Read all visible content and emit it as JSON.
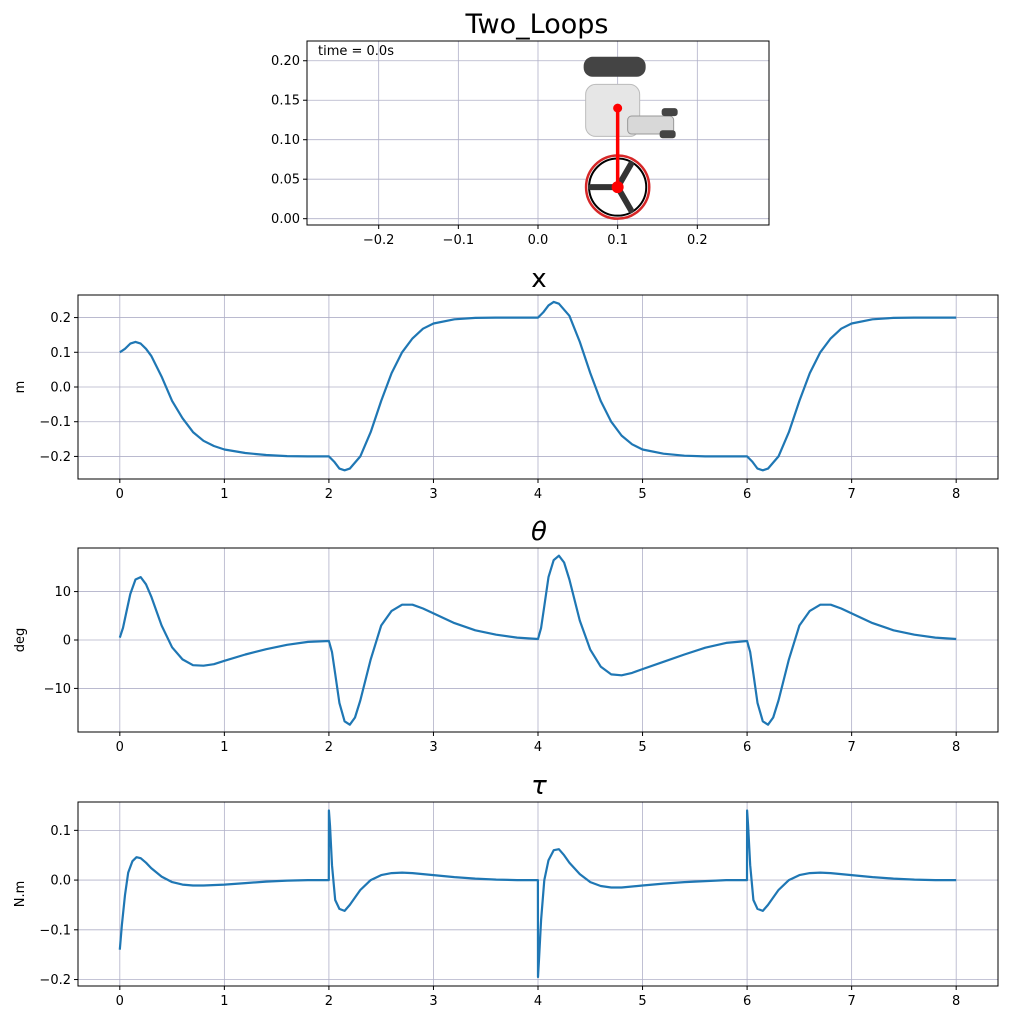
{
  "figure_title": "Two_Loops",
  "animation": {
    "time_label": "time = 0.0s",
    "wheel_x": 0.1,
    "wheel_y": 0.04,
    "wheel_radius": 0.04,
    "pendulum_top_y": 0.14,
    "colors": {
      "pendulum": "#ff0000",
      "wheel_edge": "#d62728",
      "wheel_fill": "#ffffff",
      "wheel": "#000000"
    }
  },
  "chart_data": [
    {
      "type": "scatter",
      "title": "",
      "xlim": [
        -0.29,
        0.29
      ],
      "ylim": [
        -0.008,
        0.225
      ],
      "xticks": [
        -0.2,
        -0.1,
        0.0,
        0.1,
        0.2
      ],
      "yticks": [
        0.0,
        0.05,
        0.1,
        0.15,
        0.2
      ],
      "xtick_labels": [
        "−0.2",
        "−0.1",
        "0.0",
        "0.1",
        "0.2"
      ],
      "ytick_labels": [
        "0.00",
        "0.05",
        "0.10",
        "0.15",
        "0.20"
      ],
      "grid": true
    },
    {
      "type": "line",
      "title": "x",
      "ylabel": "m",
      "xlim": [
        -0.4,
        8.4
      ],
      "ylim": [
        -0.265,
        0.265
      ],
      "xticks": [
        0,
        1,
        2,
        3,
        4,
        5,
        6,
        7,
        8
      ],
      "yticks": [
        -0.2,
        -0.1,
        0.0,
        0.1,
        0.2
      ],
      "xtick_labels": [
        "0",
        "1",
        "2",
        "3",
        "4",
        "5",
        "6",
        "7",
        "8"
      ],
      "ytick_labels": [
        "−0.2",
        "−0.1",
        "0.0",
        "0.1",
        "0.2"
      ],
      "grid": true,
      "series": [
        {
          "color": "#1f77b4",
          "x": [
            0,
            0.05,
            0.1,
            0.15,
            0.2,
            0.25,
            0.3,
            0.4,
            0.5,
            0.6,
            0.7,
            0.8,
            0.9,
            1.0,
            1.2,
            1.4,
            1.6,
            1.8,
            2.0,
            2.05,
            2.1,
            2.15,
            2.2,
            2.3,
            2.4,
            2.5,
            2.6,
            2.7,
            2.8,
            2.9,
            3.0,
            3.2,
            3.4,
            3.6,
            3.8,
            4.0,
            4.05,
            4.1,
            4.15,
            4.2,
            4.3,
            4.4,
            4.5,
            4.6,
            4.7,
            4.8,
            4.9,
            5.0,
            5.2,
            5.4,
            5.6,
            5.8,
            6.0,
            6.05,
            6.1,
            6.15,
            6.2,
            6.3,
            6.4,
            6.5,
            6.6,
            6.7,
            6.8,
            6.9,
            7.0,
            7.2,
            7.4,
            7.6,
            7.8,
            8.0
          ],
          "y": [
            0.1,
            0.11,
            0.125,
            0.13,
            0.125,
            0.11,
            0.09,
            0.03,
            -0.04,
            -0.09,
            -0.13,
            -0.155,
            -0.17,
            -0.18,
            -0.19,
            -0.196,
            -0.199,
            -0.2,
            -0.2,
            -0.215,
            -0.235,
            -0.24,
            -0.235,
            -0.2,
            -0.13,
            -0.04,
            0.04,
            0.1,
            0.14,
            0.168,
            0.183,
            0.195,
            0.199,
            0.2,
            0.2,
            0.2,
            0.215,
            0.235,
            0.245,
            0.24,
            0.205,
            0.13,
            0.04,
            -0.04,
            -0.1,
            -0.14,
            -0.165,
            -0.18,
            -0.192,
            -0.198,
            -0.2,
            -0.2,
            -0.2,
            -0.215,
            -0.235,
            -0.24,
            -0.235,
            -0.2,
            -0.13,
            -0.04,
            0.04,
            0.1,
            0.14,
            0.168,
            0.183,
            0.195,
            0.199,
            0.2,
            0.2,
            0.2
          ]
        }
      ]
    },
    {
      "type": "line",
      "title": "θ",
      "ylabel": "deg",
      "xlim": [
        -0.4,
        8.4
      ],
      "ylim": [
        -19,
        19
      ],
      "xticks": [
        0,
        1,
        2,
        3,
        4,
        5,
        6,
        7,
        8
      ],
      "yticks": [
        -10,
        0,
        10
      ],
      "xtick_labels": [
        "0",
        "1",
        "2",
        "3",
        "4",
        "5",
        "6",
        "7",
        "8"
      ],
      "ytick_labels": [
        "−10",
        "0",
        "10"
      ],
      "grid": true,
      "series": [
        {
          "color": "#1f77b4",
          "x": [
            0,
            0.03,
            0.06,
            0.1,
            0.15,
            0.2,
            0.25,
            0.3,
            0.4,
            0.5,
            0.6,
            0.7,
            0.8,
            0.9,
            1.0,
            1.2,
            1.4,
            1.6,
            1.8,
            2.0,
            2.03,
            2.06,
            2.1,
            2.15,
            2.2,
            2.25,
            2.3,
            2.4,
            2.5,
            2.6,
            2.7,
            2.8,
            2.9,
            3.0,
            3.2,
            3.4,
            3.6,
            3.8,
            4.0,
            4.03,
            4.06,
            4.1,
            4.15,
            4.2,
            4.25,
            4.3,
            4.4,
            4.5,
            4.6,
            4.7,
            4.8,
            4.9,
            5.0,
            5.2,
            5.4,
            5.6,
            5.8,
            6.0,
            6.03,
            6.06,
            6.1,
            6.15,
            6.2,
            6.25,
            6.3,
            6.4,
            6.5,
            6.6,
            6.7,
            6.8,
            6.9,
            7.0,
            7.2,
            7.4,
            7.6,
            7.8,
            8.0
          ],
          "y": [
            0.5,
            2.5,
            5.5,
            9.5,
            12.5,
            13,
            11.5,
            9,
            3,
            -1.5,
            -4,
            -5.2,
            -5.3,
            -5,
            -4.3,
            -3,
            -1.9,
            -1,
            -0.4,
            -0.2,
            -2.5,
            -7,
            -13,
            -16.8,
            -17.5,
            -16,
            -12.5,
            -4,
            3,
            6,
            7.3,
            7.3,
            6.5,
            5.5,
            3.5,
            2,
            1.1,
            0.5,
            0.2,
            2.5,
            7,
            13,
            16.5,
            17.4,
            16,
            12.5,
            4,
            -2,
            -5.5,
            -7.1,
            -7.3,
            -6.8,
            -6,
            -4.5,
            -3,
            -1.6,
            -0.6,
            -0.2,
            -2.5,
            -7,
            -13,
            -16.8,
            -17.5,
            -16,
            -12.5,
            -4,
            3,
            6,
            7.3,
            7.3,
            6.5,
            5.5,
            3.5,
            2,
            1.1,
            0.5,
            0.2
          ]
        }
      ]
    },
    {
      "type": "line",
      "title": "τ",
      "ylabel": "N.m",
      "xlim": [
        -0.4,
        8.4
      ],
      "ylim": [
        -0.213,
        0.157
      ],
      "xticks": [
        0,
        1,
        2,
        3,
        4,
        5,
        6,
        7,
        8
      ],
      "yticks": [
        -0.2,
        -0.1,
        0.0,
        0.1
      ],
      "xtick_labels": [
        "0",
        "1",
        "2",
        "3",
        "4",
        "5",
        "6",
        "7",
        "8"
      ],
      "ytick_labels": [
        "−0.2",
        "−0.1",
        "0.0",
        "0.1"
      ],
      "grid": true,
      "series": [
        {
          "color": "#1f77b4",
          "x": [
            0,
            0.02,
            0.05,
            0.08,
            0.12,
            0.16,
            0.2,
            0.25,
            0.3,
            0.4,
            0.5,
            0.6,
            0.7,
            0.8,
            1.0,
            1.2,
            1.4,
            1.6,
            1.8,
            1.999,
            2.0,
            2.01,
            2.03,
            2.06,
            2.1,
            2.15,
            2.2,
            2.25,
            2.3,
            2.4,
            2.5,
            2.6,
            2.7,
            2.8,
            3.0,
            3.2,
            3.4,
            3.6,
            3.8,
            3.999,
            4.0,
            4.01,
            4.03,
            4.06,
            4.1,
            4.15,
            4.2,
            4.25,
            4.3,
            4.4,
            4.5,
            4.6,
            4.7,
            4.8,
            5.0,
            5.2,
            5.4,
            5.6,
            5.8,
            5.999,
            6.0,
            6.01,
            6.03,
            6.06,
            6.1,
            6.15,
            6.2,
            6.25,
            6.3,
            6.4,
            6.5,
            6.6,
            6.7,
            6.8,
            7.0,
            7.2,
            7.4,
            7.6,
            7.8,
            8.0
          ],
          "y": [
            -0.14,
            -0.09,
            -0.03,
            0.015,
            0.038,
            0.046,
            0.044,
            0.035,
            0.024,
            0.007,
            -0.004,
            -0.009,
            -0.011,
            -0.011,
            -0.009,
            -0.006,
            -0.003,
            -0.001,
            0.0,
            0.0,
            0.14,
            0.11,
            0.03,
            -0.04,
            -0.058,
            -0.062,
            -0.05,
            -0.035,
            -0.02,
            0.0,
            0.01,
            0.014,
            0.015,
            0.014,
            0.01,
            0.006,
            0.003,
            0.001,
            0.0,
            0.0,
            -0.195,
            -0.16,
            -0.08,
            0.0,
            0.04,
            0.06,
            0.062,
            0.05,
            0.035,
            0.012,
            -0.004,
            -0.012,
            -0.015,
            -0.015,
            -0.011,
            -0.007,
            -0.004,
            -0.002,
            0.0,
            0.0,
            0.14,
            0.11,
            0.03,
            -0.04,
            -0.058,
            -0.062,
            -0.05,
            -0.035,
            -0.02,
            0.0,
            0.01,
            0.014,
            0.015,
            0.014,
            0.01,
            0.006,
            0.003,
            0.001,
            0.0,
            0.0
          ]
        }
      ]
    }
  ]
}
